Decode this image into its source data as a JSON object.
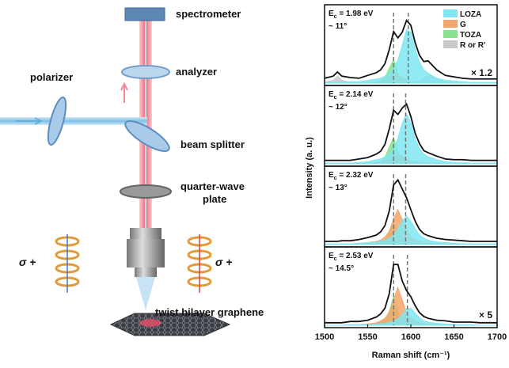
{
  "diagram": {
    "spectrometer": "spectrometer",
    "analyzer": "analyzer",
    "polarizer": "polarizer",
    "beam_splitter": "beam splitter",
    "quarter_wave_plate": [
      "quarter-wave",
      "plate"
    ],
    "sample": "twist bilayer graphene",
    "helicity": [
      "σ +",
      "σ +"
    ]
  },
  "chart_data": {
    "type": "stacked_spectra",
    "xlabel": "Raman shift (cm⁻¹)",
    "ylabel": "Intensity (a. u.)",
    "xlim": [
      1500,
      1700
    ],
    "xticks": [
      1500,
      1550,
      1600,
      1650,
      1700
    ],
    "legend": "upper right",
    "x": [
      1500,
      1510,
      1515,
      1520,
      1530,
      1540,
      1550,
      1560,
      1565,
      1570,
      1575,
      1580,
      1585,
      1590,
      1595,
      1600,
      1605,
      1610,
      1615,
      1620,
      1630,
      1640,
      1650,
      1660,
      1670,
      1680,
      1690,
      1700
    ],
    "series": [
      {
        "name": "LOZA",
        "color": "#7fe6f2"
      },
      {
        "name": "G",
        "color": "#f5a66c"
      },
      {
        "name": "TOZA",
        "color": "#86e28c"
      },
      {
        "name": "R or R'",
        "color": "#c9c9c9"
      }
    ],
    "measured_color": "#111111",
    "panels": [
      {
        "energy": {
          "symbol": "E",
          "sub": "c",
          "rest": " = 1.98 eV"
        },
        "angle": "~ 11°",
        "scale": "× 1.2",
        "ylim": [
          0,
          100
        ],
        "dashed_lines": [
          1580,
          1597
        ],
        "measured": [
          7,
          10,
          16,
          10,
          8,
          7,
          11,
          15,
          19,
          28,
          48,
          74,
          65,
          73,
          90,
          83,
          58,
          40,
          31,
          32,
          19,
          11,
          9,
          7,
          6,
          6,
          6,
          6
        ],
        "values": [
          [
            1,
            1,
            1,
            1,
            2,
            2,
            4,
            6,
            7,
            10,
            14,
            21,
            33,
            54,
            77,
            73,
            49,
            30,
            19,
            14,
            7,
            4,
            3,
            2,
            1,
            1,
            1,
            1
          ],
          [
            0,
            0,
            0,
            0,
            0,
            0,
            1,
            2,
            3,
            5,
            8,
            14,
            13,
            8,
            4,
            2,
            1,
            1,
            1,
            0,
            0,
            0,
            0,
            0,
            0,
            0,
            0,
            0
          ],
          [
            0,
            0,
            0,
            0,
            0,
            0,
            1,
            2,
            4,
            8,
            21,
            34,
            14,
            6,
            4,
            2,
            1,
            1,
            0,
            0,
            0,
            0,
            0,
            0,
            0,
            0,
            0,
            0
          ],
          [
            1,
            4,
            10,
            4,
            1,
            0,
            0,
            0,
            0,
            0,
            0,
            0,
            0,
            0,
            0,
            1,
            2,
            3,
            6,
            13,
            7,
            2,
            1,
            0,
            0,
            0,
            0,
            0
          ]
        ]
      },
      {
        "energy": {
          "symbol": "E",
          "sub": "c",
          "rest": " = 2.14 eV"
        },
        "angle": "~ 12°",
        "ylim": [
          0,
          100
        ],
        "dashed_lines": [
          1580,
          1594
        ],
        "measured": [
          5,
          5,
          5,
          5,
          5,
          7,
          9,
          14,
          18,
          28,
          50,
          77,
          71,
          80,
          86,
          68,
          44,
          29,
          19,
          16,
          11,
          7,
          6,
          6,
          5,
          5,
          5,
          5
        ],
        "values": [
          [
            1,
            1,
            1,
            1,
            1,
            2,
            3,
            6,
            7,
            10,
            14,
            22,
            36,
            58,
            72,
            58,
            36,
            22,
            14,
            10,
            6,
            3,
            2,
            2,
            1,
            1,
            1,
            1
          ],
          [
            0,
            0,
            0,
            0,
            0,
            1,
            1,
            2,
            3,
            5,
            8,
            13,
            15,
            11,
            7,
            4,
            3,
            2,
            1,
            1,
            1,
            0,
            0,
            0,
            0,
            0,
            0,
            0
          ],
          [
            0,
            0,
            0,
            0,
            0,
            0,
            1,
            2,
            4,
            9,
            24,
            38,
            16,
            7,
            3,
            2,
            1,
            1,
            0,
            0,
            0,
            0,
            0,
            0,
            0,
            0,
            0,
            0
          ],
          null
        ]
      },
      {
        "energy": {
          "symbol": "E",
          "sub": "c",
          "rest": " = 2.32 eV"
        },
        "angle": "~ 13°",
        "ylim": [
          0,
          110
        ],
        "dashed_lines": [
          1580,
          1594
        ],
        "measured": [
          5,
          5,
          5,
          6,
          6,
          8,
          11,
          15,
          20,
          30,
          53,
          94,
          102,
          88,
          74,
          55,
          37,
          24,
          17,
          14,
          10,
          8,
          7,
          6,
          5,
          5,
          5,
          5
        ],
        "values": [
          [
            1,
            1,
            1,
            1,
            1,
            2,
            3,
            4,
            5,
            7,
            10,
            15,
            25,
            37,
            45,
            37,
            25,
            15,
            10,
            7,
            4,
            3,
            2,
            1,
            1,
            1,
            1,
            1
          ],
          [
            0,
            0,
            0,
            1,
            1,
            2,
            3,
            5,
            7,
            12,
            21,
            40,
            55,
            40,
            21,
            12,
            7,
            5,
            3,
            3,
            2,
            1,
            1,
            1,
            0,
            0,
            0,
            0
          ],
          [
            0,
            0,
            0,
            0,
            0,
            0,
            1,
            2,
            4,
            7,
            18,
            35,
            18,
            7,
            4,
            2,
            1,
            0,
            0,
            0,
            0,
            0,
            0,
            0,
            0,
            0,
            0,
            0
          ],
          null
        ]
      },
      {
        "energy": {
          "symbol": "E",
          "sub": "c",
          "rest": " = 2.53 eV"
        },
        "angle": "~ 14.5°",
        "scale": "× 5",
        "ylim": [
          0,
          110
        ],
        "dashed_lines": [
          1580,
          1596
        ],
        "measured": [
          4,
          4,
          4,
          4,
          6,
          6,
          8,
          13,
          18,
          27,
          50,
          96,
          96,
          70,
          55,
          45,
          31,
          20,
          14,
          11,
          8,
          7,
          5,
          5,
          5,
          4,
          4,
          4
        ],
        "values": [
          [
            0,
            0,
            0,
            0,
            1,
            1,
            1,
            2,
            2,
            3,
            4,
            7,
            10,
            17,
            26,
            27,
            19,
            12,
            7,
            5,
            3,
            2,
            1,
            1,
            1,
            0,
            0,
            0
          ],
          [
            0,
            0,
            0,
            0,
            1,
            1,
            2,
            4,
            7,
            11,
            20,
            40,
            60,
            40,
            20,
            11,
            7,
            4,
            3,
            2,
            1,
            1,
            0,
            0,
            0,
            0,
            0,
            0
          ],
          [
            0,
            0,
            0,
            0,
            0,
            0,
            1,
            3,
            5,
            9,
            22,
            45,
            22,
            9,
            5,
            3,
            1,
            0,
            0,
            0,
            0,
            0,
            0,
            0,
            0,
            0,
            0,
            0
          ],
          null
        ]
      }
    ]
  }
}
